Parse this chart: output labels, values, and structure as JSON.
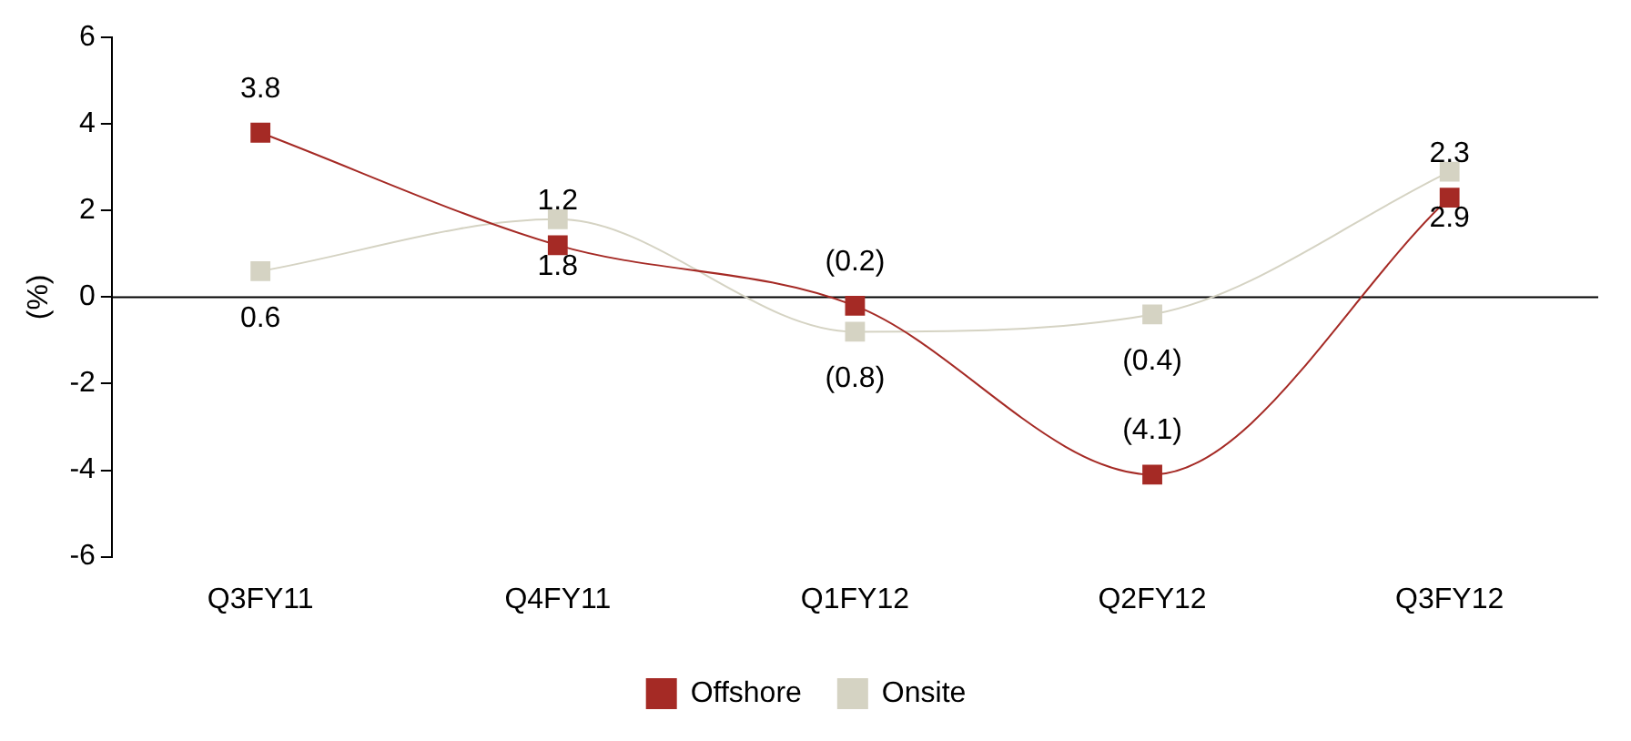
{
  "chart_data": {
    "type": "line",
    "ylabel": "(%)",
    "categories": [
      "Q3FY11",
      "Q4FY11",
      "Q1FY12",
      "Q2FY12",
      "Q3FY12"
    ],
    "series": [
      {
        "name": "Offshore",
        "color": "#a52a25",
        "values": [
          3.8,
          1.2,
          -0.2,
          -4.1,
          2.3
        ],
        "value_labels": [
          "3.8",
          "1.2",
          "(0.2)",
          "(4.1)",
          "2.3"
        ]
      },
      {
        "name": "Onsite",
        "color": "#d5d3c3",
        "values": [
          0.6,
          1.8,
          -0.8,
          -0.4,
          2.9
        ],
        "value_labels": [
          "0.6",
          "1.8",
          "(0.8)",
          "(0.4)",
          "2.9"
        ]
      }
    ],
    "ylim": [
      -6,
      6
    ],
    "yticks": [
      -6,
      -4,
      -2,
      0,
      2,
      4,
      6
    ],
    "grid": false,
    "legend": "bottom",
    "marker": "square",
    "line_style": "solid",
    "ref_lines": [
      {
        "axis": "y",
        "value": 0,
        "color": "#000000"
      }
    ]
  }
}
